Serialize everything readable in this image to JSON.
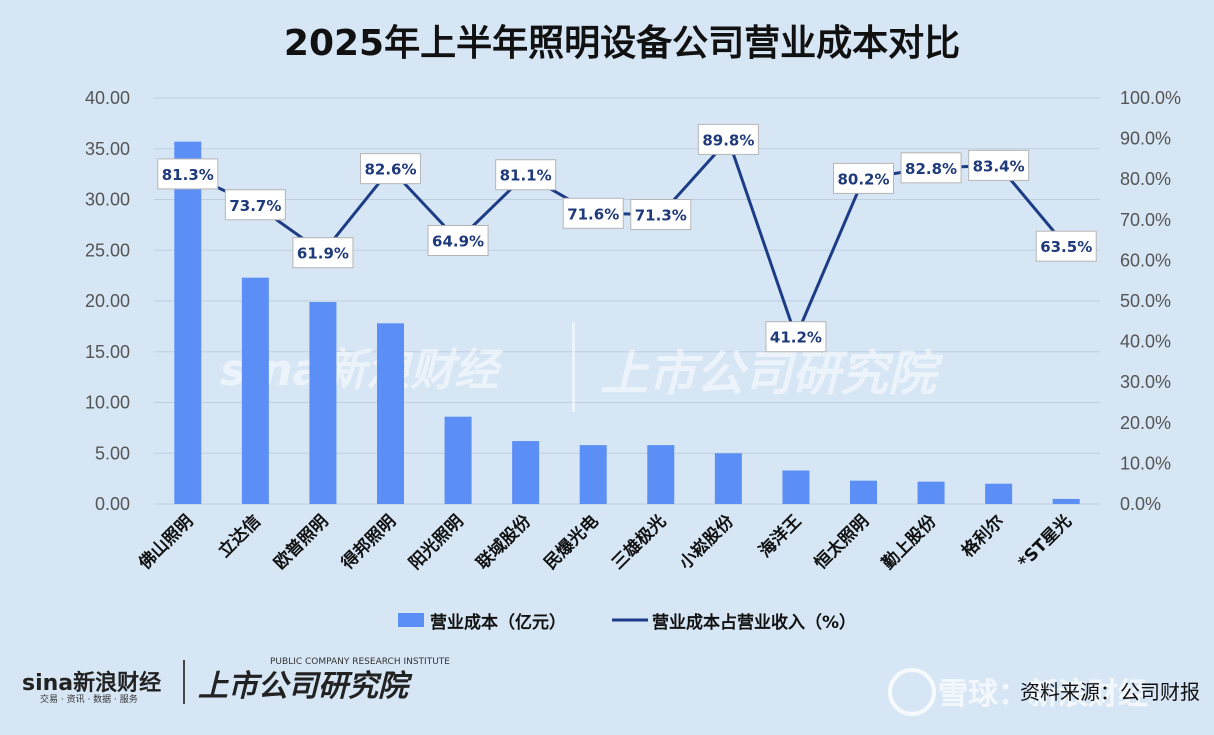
{
  "chart_data": {
    "type": "bar",
    "title": "2025年上半年照明设备公司营业成本对比",
    "categories": [
      "佛山照明",
      "立达信",
      "欧普照明",
      "得邦照明",
      "阳光照明",
      "联域股份",
      "民爆光电",
      "三雄极光",
      "小崧股份",
      "海洋王",
      "恒太照明",
      "勤上股份",
      "格利尔",
      "*ST星光"
    ],
    "series": [
      {
        "name": "营业成本（亿元）",
        "type": "bar",
        "axis": "left",
        "color": "#5b8ff5",
        "values": [
          35.7,
          22.3,
          19.9,
          17.8,
          8.6,
          6.2,
          5.8,
          5.8,
          5.0,
          3.3,
          2.3,
          2.2,
          2.0,
          0.5
        ]
      },
      {
        "name": "营业成本占营业收入（%）",
        "type": "line",
        "axis": "right",
        "color": "#1c3c86",
        "values": [
          81.3,
          73.7,
          61.9,
          82.6,
          64.9,
          81.1,
          71.6,
          71.3,
          89.8,
          41.2,
          80.2,
          82.8,
          83.4,
          63.5
        ],
        "labels": [
          "81.3%",
          "73.7%",
          "61.9%",
          "82.6%",
          "64.9%",
          "81.1%",
          "71.6%",
          "71.3%",
          "89.8%",
          "41.2%",
          "80.2%",
          "82.8%",
          "83.4%",
          "63.5%"
        ]
      }
    ],
    "y_left": {
      "range": [
        0,
        40
      ],
      "ticks": [
        "0.00",
        "5.00",
        "10.00",
        "15.00",
        "20.00",
        "25.00",
        "30.00",
        "35.00",
        "40.00"
      ]
    },
    "y_right": {
      "range": [
        0,
        100
      ],
      "ticks": [
        "0.0%",
        "10.0%",
        "20.0%",
        "30.0%",
        "40.0%",
        "50.0%",
        "60.0%",
        "70.0%",
        "80.0%",
        "90.0%",
        "100.0%"
      ]
    },
    "grid": true,
    "legend_position": "bottom"
  },
  "footer": {
    "brand_sina": "sina新浪财经",
    "brand_sina_sub": "交易 · 资讯 · 数据 · 服务",
    "brand_institute": "上市公司研究院",
    "brand_institute_sub": "PUBLIC COMPANY RESEARCH INSTITUTE",
    "source": "资料来源：公司财报",
    "watermark_xueqiu": "雪球：新浪财经"
  },
  "colors": {
    "bar": "#5b8ff5",
    "line": "#1c3c86",
    "background": "#d6e6f5"
  }
}
